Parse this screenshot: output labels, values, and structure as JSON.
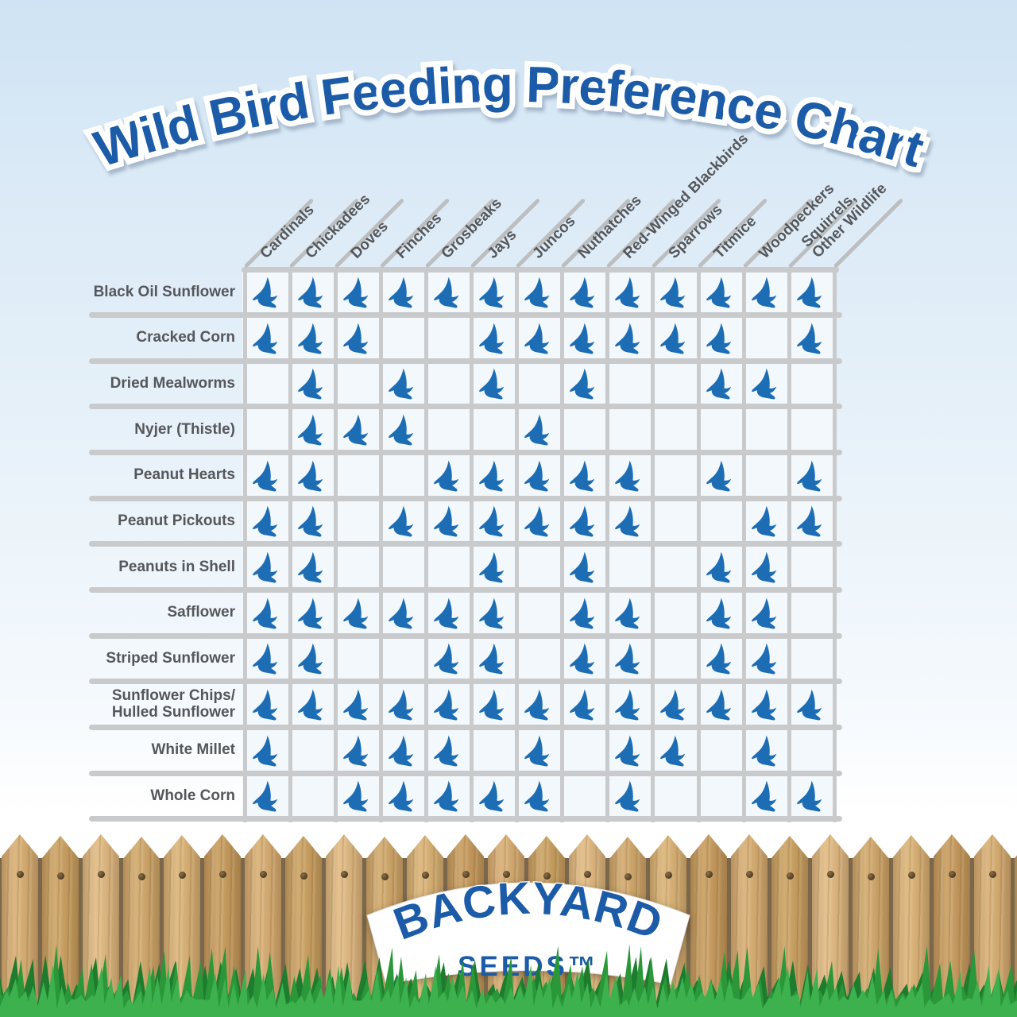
{
  "title": "Wild Bird Feeding Preference Chart",
  "logo": {
    "name": "BACKYARD",
    "sub": "SEEDS™"
  },
  "colors": {
    "title_blue": "#1b5ba8",
    "bird_blue": "#1d6db5",
    "label_gray": "#55575a",
    "grid_line": "#c8cacc",
    "cell_bg": "#f3f8fc",
    "sky_top": "#cfe3f4",
    "wood_tones": [
      "#d6ad74",
      "#c9a062",
      "#dfb983",
      "#cfa76c",
      "#d9b277",
      "#c59a5e"
    ],
    "grass_tones": [
      "#1d7c2e",
      "#2a9739",
      "#3db14d"
    ]
  },
  "icons": {
    "cell_marker": "bird-icon"
  },
  "chart_data": {
    "type": "table",
    "title": "Wild Bird Feeding Preference Chart",
    "columns": [
      "Cardinals",
      "Chickadees",
      "Doves",
      "Finches",
      "Grosbeaks",
      "Jays",
      "Juncos",
      "Nuthatches",
      "Red-Winged Blackbirds",
      "Sparrows",
      "Titmice",
      "Woodpeckers",
      "Squirrels,\nOther Wildlife"
    ],
    "rows": [
      "Black Oil Sunflower",
      "Cracked Corn",
      "Dried Mealworms",
      "Nyjer (Thistle)",
      "Peanut Hearts",
      "Peanut Pickouts",
      "Peanuts in Shell",
      "Safflower",
      "Striped Sunflower",
      "Sunflower Chips/\nHulled Sunflower",
      "White Millet",
      "Whole Corn"
    ],
    "matrix": [
      [
        1,
        1,
        1,
        1,
        1,
        1,
        1,
        1,
        1,
        1,
        1,
        1,
        1
      ],
      [
        1,
        1,
        1,
        0,
        0,
        1,
        1,
        1,
        1,
        1,
        1,
        0,
        1
      ],
      [
        0,
        1,
        0,
        1,
        0,
        1,
        0,
        1,
        0,
        0,
        1,
        1,
        0
      ],
      [
        0,
        1,
        1,
        1,
        0,
        0,
        1,
        0,
        0,
        0,
        0,
        0,
        0
      ],
      [
        1,
        1,
        0,
        0,
        1,
        1,
        1,
        1,
        1,
        0,
        1,
        0,
        1
      ],
      [
        1,
        1,
        0,
        1,
        1,
        1,
        1,
        1,
        1,
        0,
        0,
        1,
        1
      ],
      [
        1,
        1,
        0,
        0,
        0,
        1,
        0,
        1,
        0,
        0,
        1,
        1,
        0
      ],
      [
        1,
        1,
        1,
        1,
        1,
        1,
        0,
        1,
        1,
        0,
        1,
        1,
        0
      ],
      [
        1,
        1,
        0,
        0,
        1,
        1,
        0,
        1,
        1,
        0,
        1,
        1,
        0
      ],
      [
        1,
        1,
        1,
        1,
        1,
        1,
        1,
        1,
        1,
        1,
        1,
        1,
        1
      ],
      [
        1,
        0,
        1,
        1,
        1,
        0,
        1,
        0,
        1,
        1,
        0,
        1,
        0
      ],
      [
        1,
        0,
        1,
        1,
        1,
        1,
        1,
        0,
        1,
        0,
        0,
        1,
        1
      ]
    ]
  }
}
